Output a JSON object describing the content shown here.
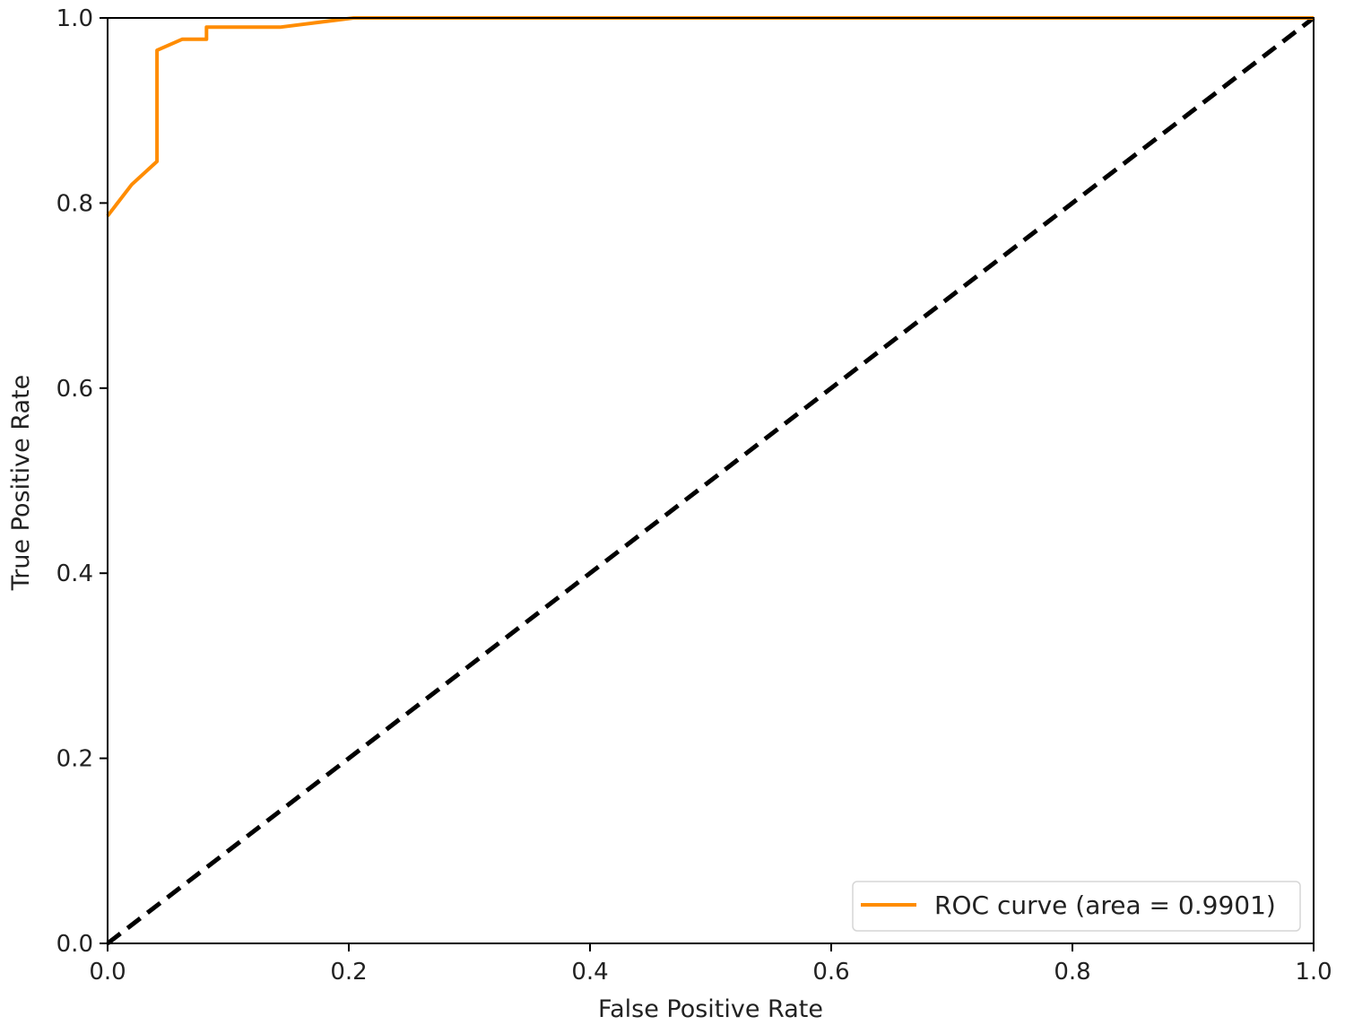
{
  "chart_data": {
    "type": "line",
    "title": "",
    "xlabel": "False Positive Rate",
    "ylabel": "True Positive Rate",
    "xlim": [
      0.0,
      1.0
    ],
    "ylim": [
      0.0,
      1.0
    ],
    "xticks": [
      "0.0",
      "0.2",
      "0.4",
      "0.6",
      "0.8",
      "1.0"
    ],
    "yticks": [
      "0.0",
      "0.2",
      "0.4",
      "0.6",
      "0.8",
      "1.0"
    ],
    "grid": false,
    "legend_position": "lower-right",
    "series": [
      {
        "name": "ROC curve (area = 0.9901)",
        "color": "#ff8c00",
        "style": "solid",
        "x": [
          0.0,
          0.02,
          0.041,
          0.041,
          0.062,
          0.082,
          0.082,
          0.143,
          0.204,
          1.0
        ],
        "y": [
          0.786,
          0.82,
          0.845,
          0.965,
          0.977,
          0.977,
          0.99,
          0.99,
          1.0,
          1.0
        ]
      },
      {
        "name": "",
        "color": "#000000",
        "style": "dashed",
        "x": [
          0.0,
          1.0
        ],
        "y": [
          0.0,
          1.0
        ]
      }
    ]
  }
}
